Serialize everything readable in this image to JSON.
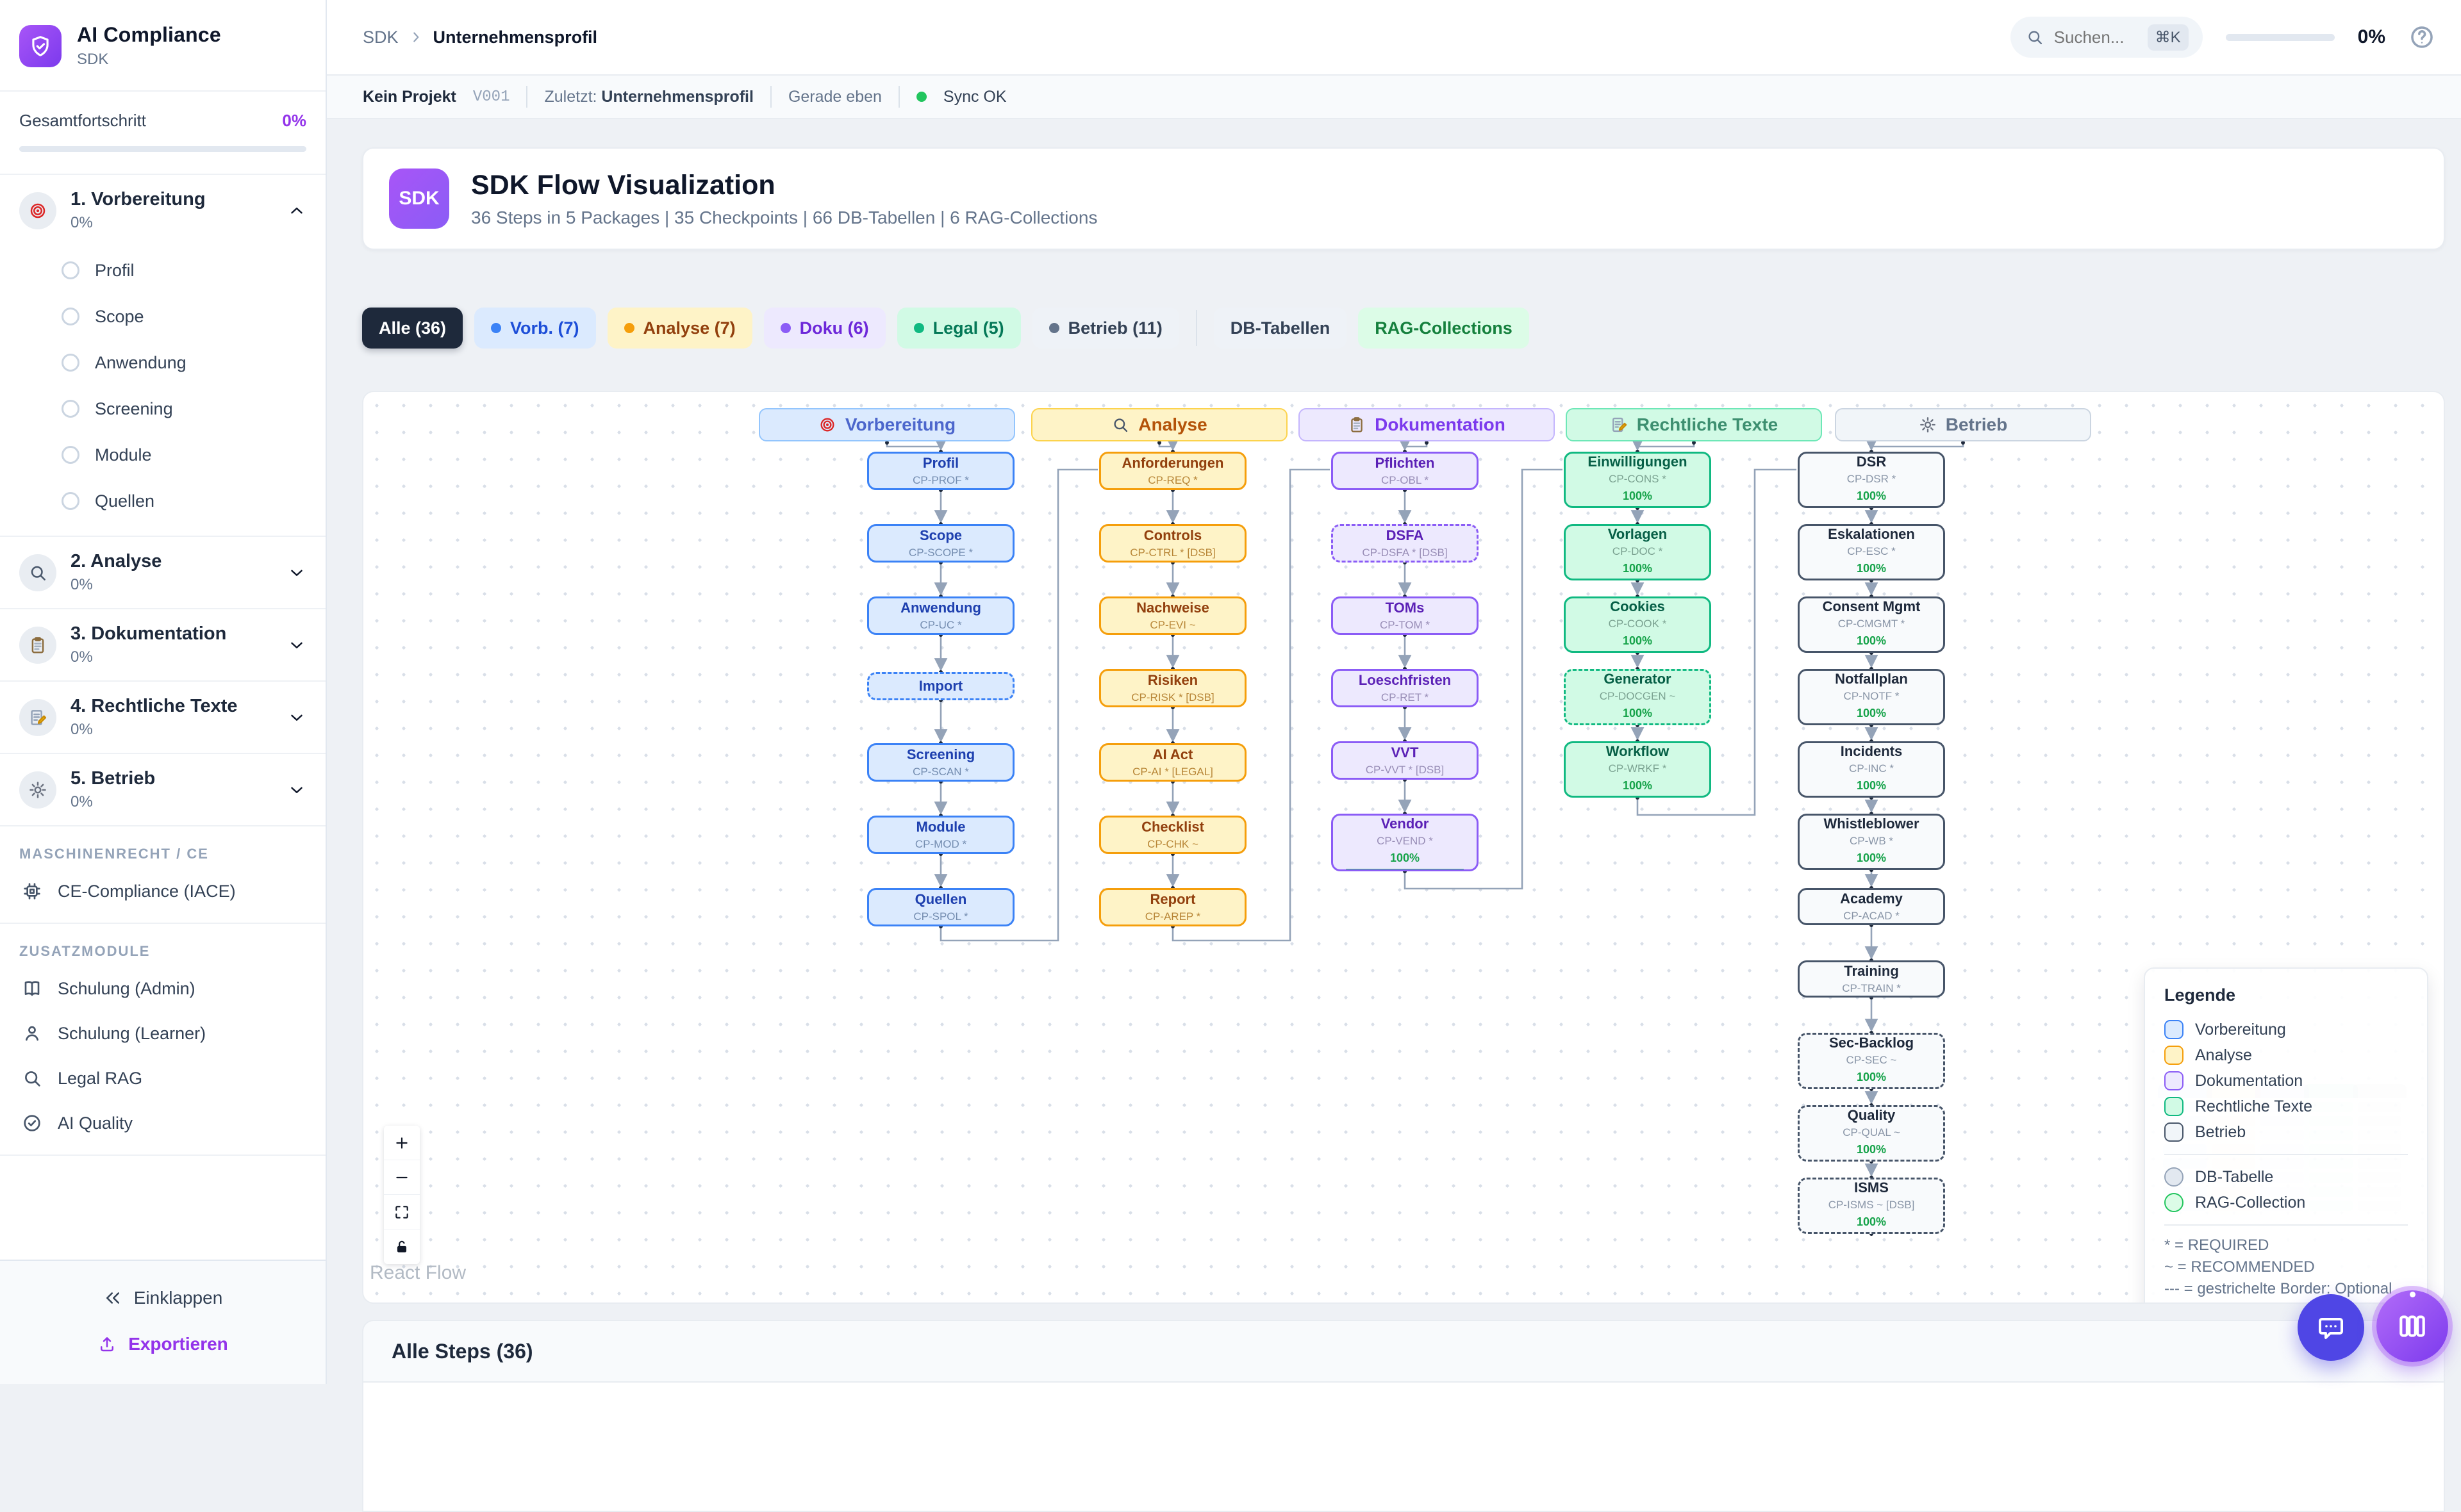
{
  "app": {
    "name": "AI Compliance",
    "subtitle": "SDK"
  },
  "sidebar": {
    "overall_label": "Gesamtfortschritt",
    "overall_value": "0%",
    "phases": [
      {
        "label": "1. Vorbereitung",
        "percent": "0%",
        "icon": "target",
        "expanded": true,
        "items": [
          "Profil",
          "Scope",
          "Anwendung",
          "Screening",
          "Module",
          "Quellen"
        ]
      },
      {
        "label": "2. Analyse",
        "percent": "0%",
        "icon": "search",
        "expanded": false,
        "items": []
      },
      {
        "label": "3. Dokumentation",
        "percent": "0%",
        "icon": "clipboard",
        "expanded": false,
        "items": []
      },
      {
        "label": "4. Rechtliche Texte",
        "percent": "0%",
        "icon": "memo",
        "expanded": false,
        "items": []
      },
      {
        "label": "5. Betrieb",
        "percent": "0%",
        "icon": "gear",
        "expanded": false,
        "items": []
      }
    ],
    "sections": [
      {
        "header": "MASCHINENRECHT / CE",
        "items": [
          {
            "label": "CE-Compliance (IACE)",
            "icon": "cpu"
          }
        ]
      },
      {
        "header": "ZUSATZMODULE",
        "items": [
          {
            "label": "Schulung (Admin)",
            "icon": "book"
          },
          {
            "label": "Schulung (Learner)",
            "icon": "person"
          },
          {
            "label": "Legal RAG",
            "icon": "search"
          },
          {
            "label": "AI Quality",
            "icon": "check-circle"
          }
        ]
      }
    ],
    "collapse_label": "Einklappen",
    "export_label": "Exportieren"
  },
  "topbar": {
    "breadcrumb_root": "SDK",
    "breadcrumb_current": "Unternehmensprofil",
    "search_placeholder": "Suchen...",
    "search_shortcut": "⌘K",
    "progress_value": "0%"
  },
  "statusbar": {
    "project": "Kein Projekt",
    "version": "V001",
    "last_label": "Zuletzt:",
    "last_value": "Unternehmensprofil",
    "time": "Gerade eben",
    "sync": "Sync OK",
    "sync_color": "#22c55e"
  },
  "header": {
    "badge": "SDK",
    "title": "SDK Flow Visualization",
    "subtitle": "36 Steps in 5 Packages | 35 Checkpoints | 66 DB-Tabellen | 6 RAG-Collections"
  },
  "filters": [
    {
      "label": "Alle (36)",
      "bg": "#1e293b",
      "color": "#ffffff",
      "dot": null,
      "active": true
    },
    {
      "label": "Vorb. (7)",
      "bg": "#dbeafe",
      "color": "#1d4ed8",
      "dot": "#3b82f6"
    },
    {
      "label": "Analyse (7)",
      "bg": "#fef3c7",
      "color": "#92400e",
      "dot": "#f59e0b"
    },
    {
      "label": "Doku (6)",
      "bg": "#ede9fe",
      "color": "#6d28d9",
      "dot": "#8b5cf6"
    },
    {
      "label": "Legal (5)",
      "bg": "#d1fae5",
      "color": "#047857",
      "dot": "#10b981"
    },
    {
      "label": "Betrieb (11)",
      "bg": "#eef2f7",
      "color": "#334155",
      "dot": "#64748b"
    },
    {
      "divider": true
    },
    {
      "label": "DB-Tabellen",
      "bg": "#eef2f7",
      "color": "#334155",
      "dot": null
    },
    {
      "label": "RAG-Collections",
      "bg": "#dcfce7",
      "color": "#15803d",
      "dot": null
    }
  ],
  "flow": {
    "packages": [
      {
        "label": "Vorbereitung",
        "icon": "target",
        "theme": {
          "hbg": "#dbeafe",
          "hborder": "#93c5fd",
          "htext": "#4c66cc",
          "nbg": "#dbeafe",
          "nborder": "#3b82f6",
          "ntitle": "#1e40af",
          "ncode": "#526e97"
        },
        "nodes": [
          {
            "title": "Profil",
            "code": "CP-PROF *"
          },
          {
            "title": "Scope",
            "code": "CP-SCOPE *"
          },
          {
            "title": "Anwendung",
            "code": "CP-UC *"
          },
          {
            "title": "Import",
            "code": "",
            "dashed": true
          },
          {
            "title": "Screening",
            "code": "CP-SCAN *"
          },
          {
            "title": "Module",
            "code": "CP-MOD *"
          },
          {
            "title": "Quellen",
            "code": "CP-SPOL *"
          }
        ]
      },
      {
        "label": "Analyse",
        "icon": "search",
        "theme": {
          "hbg": "#fef3c7",
          "hborder": "#fcd34d",
          "htext": "#b45309",
          "nbg": "#fef3c7",
          "nborder": "#f59e0b",
          "ntitle": "#92400e",
          "ncode": "#a16207"
        },
        "nodes": [
          {
            "title": "Anforderungen",
            "code": "CP-REQ *"
          },
          {
            "title": "Controls",
            "code": "CP-CTRL * [DSB]"
          },
          {
            "title": "Nachweise",
            "code": "CP-EVI ~"
          },
          {
            "title": "Risiken",
            "code": "CP-RISK * [DSB]"
          },
          {
            "title": "AI Act",
            "code": "CP-AI * [LEGAL]"
          },
          {
            "title": "Checklist",
            "code": "CP-CHK ~"
          },
          {
            "title": "Report",
            "code": "CP-AREP *"
          }
        ]
      },
      {
        "label": "Dokumentation",
        "icon": "clipboard",
        "theme": {
          "hbg": "#ede9fe",
          "hborder": "#c4b5fd",
          "htext": "#7c3aed",
          "nbg": "#ede9fe",
          "nborder": "#8b5cf6",
          "ntitle": "#5b21b6",
          "ncode": "#7c6f9f"
        },
        "nodes": [
          {
            "title": "Pflichten",
            "code": "CP-OBL *"
          },
          {
            "title": "DSFA",
            "code": "CP-DSFA * [DSB]",
            "dashed": true
          },
          {
            "title": "TOMs",
            "code": "CP-TOM *"
          },
          {
            "title": "Loeschfristen",
            "code": "CP-RET *"
          },
          {
            "title": "VVT",
            "code": "CP-VVT * [DSB]"
          },
          {
            "title": "Vendor",
            "code": "CP-VEND *",
            "progress": "100%"
          }
        ]
      },
      {
        "label": "Rechtliche Texte",
        "icon": "memo",
        "theme": {
          "hbg": "#d1fae5",
          "hborder": "#6ee7b7",
          "htext": "#3d8f70",
          "nbg": "#d1fae5",
          "nborder": "#10b981",
          "ntitle": "#065f46",
          "ncode": "#5f8576"
        },
        "nodes": [
          {
            "title": "Einwilligungen",
            "code": "CP-CONS *",
            "progress": "100%"
          },
          {
            "title": "Vorlagen",
            "code": "CP-DOC *",
            "progress": "100%"
          },
          {
            "title": "Cookies",
            "code": "CP-COOK *",
            "progress": "100%"
          },
          {
            "title": "Generator",
            "code": "CP-DOCGEN ~",
            "progress": "100%",
            "dashed": true
          },
          {
            "title": "Workflow",
            "code": "CP-WRKF *",
            "progress": "100%"
          }
        ]
      },
      {
        "label": "Betrieb",
        "icon": "gear",
        "theme": {
          "hbg": "#f1f5f9",
          "hborder": "#cbd5e1",
          "htext": "#64748b",
          "nbg": "#f8fafc",
          "nborder": "#475569",
          "ntitle": "#1e293b",
          "ncode": "#64748b"
        },
        "nodes": [
          {
            "title": "DSR",
            "code": "CP-DSR *",
            "progress": "100%"
          },
          {
            "title": "Eskalationen",
            "code": "CP-ESC *",
            "progress": "100%"
          },
          {
            "title": "Consent Mgmt",
            "code": "CP-CMGMT *",
            "progress": "100%"
          },
          {
            "title": "Notfallplan",
            "code": "CP-NOTF *",
            "progress": "100%"
          },
          {
            "title": "Incidents",
            "code": "CP-INC *",
            "progress": "100%"
          },
          {
            "title": "Whistleblower",
            "code": "CP-WB *",
            "progress": "100%"
          },
          {
            "title": "Academy",
            "code": "CP-ACAD *"
          },
          {
            "title": "Training",
            "code": "CP-TRAIN *"
          },
          {
            "title": "Sec-Backlog",
            "code": "CP-SEC ~",
            "progress": "100%",
            "dashed": true
          },
          {
            "title": "Quality",
            "code": "CP-QUAL ~",
            "progress": "100%",
            "dashed": true
          },
          {
            "title": "ISMS",
            "code": "CP-ISMS ~ [DSB]",
            "progress": "100%",
            "dashed": true
          }
        ]
      }
    ],
    "edge_color": "#94a3b8",
    "progress_bar_color": "#22c55e",
    "progress_text_color": "#16a34a"
  },
  "legend": {
    "title": "Legende",
    "packages": [
      {
        "label": "Vorbereitung",
        "fill": "#dbeafe",
        "border": "#3b82f6"
      },
      {
        "label": "Analyse",
        "fill": "#fef3c7",
        "border": "#f59e0b"
      },
      {
        "label": "Dokumentation",
        "fill": "#ede9fe",
        "border": "#8b5cf6"
      },
      {
        "label": "Rechtliche Texte",
        "fill": "#d1fae5",
        "border": "#10b981"
      },
      {
        "label": "Betrieb",
        "fill": "#f1f5f9",
        "border": "#475569"
      }
    ],
    "shapes": [
      {
        "label": "DB-Tabelle",
        "fill": "#e2e8f0",
        "border": "#94a3b8"
      },
      {
        "label": "RAG-Collection",
        "fill": "#dcfce7",
        "border": "#22c55e"
      }
    ],
    "notes": [
      "* = REQUIRED",
      "~ = RECOMMENDED",
      "--- = gestrichelte Border: Optional"
    ]
  },
  "controls": [
    {
      "icon": "plus",
      "name": "zoom-in"
    },
    {
      "icon": "minus",
      "name": "zoom-out"
    },
    {
      "icon": "fit",
      "name": "fit-view"
    },
    {
      "icon": "lock-open",
      "name": "toggle-interactivity"
    }
  ],
  "attribution": "React Flow",
  "bottom_panel": {
    "title": "Alle Steps (36)"
  }
}
